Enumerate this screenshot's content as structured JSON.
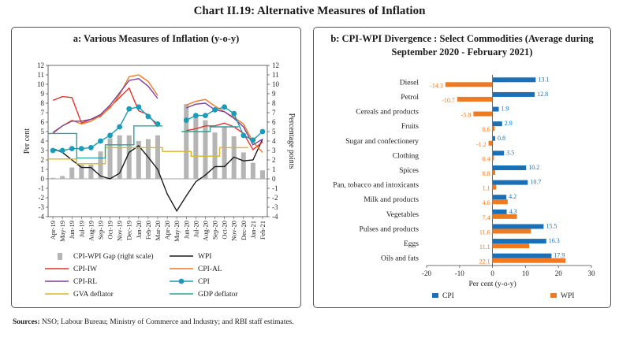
{
  "title": "Chart II.19: Alternative Measures of Inflation",
  "sources_label": "Sources:",
  "sources_text": "NSO; Labour Bureau; Ministry of Commerce and Industry; and RBI staff estimates.",
  "chart_data": [
    {
      "type": "line",
      "title": "a: Various Measures of Inflation (y-o-y)",
      "ylabel": "Per cent",
      "y2label": "Percentage points",
      "ylim": [
        -4,
        12
      ],
      "y2lim": [
        -4,
        12
      ],
      "yticks": [
        -4,
        -3,
        -2,
        -1,
        0,
        1,
        2,
        3,
        4,
        5,
        6,
        7,
        8,
        9,
        10,
        11,
        12
      ],
      "categories": [
        "Apr-19",
        "May-19",
        "Jun-19",
        "Jul-19",
        "Aug-19",
        "Sep-19",
        "Oct-19",
        "Nov-19",
        "Dec-19",
        "Jan-20",
        "Feb-20",
        "Mar-20",
        "Apr-20",
        "May-20",
        "Jun-20",
        "Jul-20",
        "Aug-20",
        "Sep-20",
        "Oct-20",
        "Nov-20",
        "Dec-20",
        "Jan-21",
        "Feb-21"
      ],
      "tick_labels": [
        "Apr-19",
        "Jun-19",
        "Aug-19",
        "Oct-19",
        "Dec-19",
        "Feb-20",
        "Apr-20",
        "Jun-20",
        "Aug-20",
        "Oct-20",
        "Dec-20",
        "Feb-21",
        "May-19",
        "Jul-19",
        "Sep-19",
        "Nov-19",
        "Jan-20",
        "Mar-20",
        "May-20",
        "Jul-20",
        "Sep-20",
        "Nov-20",
        "Jan-21"
      ],
      "series": [
        {
          "name": "CPI-WPI Gap (right scale)",
          "kind": "bar",
          "color": "#b5b5b5",
          "values": [
            0.1,
            0.3,
            1.2,
            1.5,
            1.5,
            2.9,
            4.3,
            4.6,
            4.6,
            4.0,
            4.2,
            4.6,
            null,
            null,
            7.9,
            6.9,
            6.2,
            4.9,
            5.5,
            4.5,
            2.8,
            1.7,
            0.9
          ]
        },
        {
          "name": "WPI",
          "kind": "line",
          "color": "#1a1a1a",
          "values": [
            3.2,
            2.8,
            2.0,
            1.2,
            1.2,
            0.3,
            0.0,
            0.6,
            2.8,
            3.5,
            2.3,
            1.0,
            -1.6,
            -3.4,
            -1.8,
            -0.3,
            0.4,
            1.3,
            1.3,
            2.3,
            1.9,
            2.0,
            4.2
          ]
        },
        {
          "name": "CPI-IW",
          "kind": "line",
          "color": "#e8312b",
          "values": [
            8.3,
            8.7,
            8.6,
            5.9,
            6.3,
            6.6,
            7.6,
            8.6,
            9.6,
            7.2,
            6.8,
            5.5,
            null,
            null,
            5.1,
            5.3,
            5.6,
            5.6,
            5.9,
            5.5,
            4.8,
            3.1,
            3.9
          ]
        },
        {
          "name": "CPI-AL",
          "kind": "line",
          "color": "#f07a22",
          "values": [
            4.8,
            5.6,
            6.2,
            5.8,
            6.1,
            6.7,
            7.5,
            8.9,
            10.8,
            11.0,
            10.3,
            8.8,
            null,
            null,
            7.8,
            8.2,
            8.4,
            7.7,
            7.1,
            6.5,
            5.8,
            3.9,
            2.8
          ]
        },
        {
          "name": "CPI-RL",
          "kind": "line",
          "color": "#7b3fa0",
          "values": [
            4.9,
            5.6,
            6.1,
            6.1,
            6.3,
            6.8,
            7.8,
            9.1,
            10.4,
            10.6,
            9.8,
            8.5,
            null,
            null,
            7.5,
            7.9,
            8.0,
            7.3,
            7.1,
            6.4,
            5.5,
            3.6,
            4.2
          ]
        },
        {
          "name": "CPI",
          "kind": "line",
          "color": "#1a9bb7",
          "marker": "o",
          "values": [
            3.0,
            3.0,
            3.2,
            3.2,
            3.3,
            4.0,
            4.6,
            5.5,
            7.4,
            7.6,
            6.6,
            5.8,
            null,
            null,
            6.2,
            6.7,
            6.7,
            7.3,
            7.6,
            6.9,
            4.6,
            4.1,
            5.0
          ]
        },
        {
          "name": "GVA deflator",
          "kind": "step",
          "color": "#d9b824",
          "values": [
            2.1,
            2.1,
            2.1,
            1.6,
            1.6,
            1.6,
            3.3,
            3.3,
            3.3,
            3.3,
            3.3,
            3.3,
            2.9,
            2.9,
            2.9,
            2.4,
            2.4,
            2.4,
            3.3,
            3.3,
            3.3,
            null,
            null
          ]
        },
        {
          "name": "GDP deflator",
          "kind": "step",
          "color": "#2aa39b",
          "values": [
            4.8,
            4.8,
            4.8,
            2.2,
            2.2,
            2.2,
            3.6,
            3.6,
            3.6,
            5.6,
            5.6,
            5.6,
            null,
            null,
            5.0,
            5.0,
            5.0,
            5.5,
            5.5,
            5.5,
            null,
            null,
            null
          ]
        }
      ],
      "legend": [
        "CPI-WPI Gap (right scale)",
        "WPI",
        "CPI-IW",
        "CPI-AL",
        "CPI-RL",
        "CPI",
        "GVA deflator",
        "GDP deflator"
      ]
    },
    {
      "type": "bar",
      "orientation": "horizontal",
      "title": "b: CPI-WPI Divergence : Select Commodities (Average during September 2020 - February 2021)",
      "xlabel": "Per cent (y-o-y)",
      "xlim": [
        -20,
        30
      ],
      "xticks": [
        -20,
        -10,
        0,
        10,
        20,
        30
      ],
      "categories": [
        "Diesel",
        "Petrol",
        "Cereals and products",
        "Fruits",
        "Sugar and confectionery",
        "Clothing",
        "Spices",
        "Pan, tobacco and intoxicants",
        "Milk and products",
        "Vegetables",
        "Pulses and products",
        "Eggs",
        "Oils and fats"
      ],
      "series": [
        {
          "name": "CPI",
          "color": "#1a6fb5",
          "values": [
            13.1,
            12.8,
            1.9,
            2.9,
            0.8,
            3.5,
            10.2,
            10.7,
            4.2,
            4.3,
            15.5,
            16.3,
            17.9
          ]
        },
        {
          "name": "WPI",
          "color": "#f07a22",
          "values": [
            -14.3,
            -10.7,
            -5.8,
            0.6,
            -1.2,
            0.4,
            0.8,
            1.1,
            4.6,
            7.4,
            11.6,
            11.1,
            22.1
          ]
        }
      ],
      "cpi_labels": [
        "13.1",
        "12.8",
        "1.9",
        "2.9",
        "0.8",
        "3.5",
        "10.2",
        "10.7",
        "4.2",
        "4.3",
        "15.5",
        "16.3",
        "17.9"
      ],
      "wpi_labels": [
        "-14.3",
        "-10.7",
        "-5.8",
        "0.6",
        "-1.2",
        "0.4",
        "0.8",
        "1.1",
        "4.6",
        "7.4",
        "11.6",
        "11.1",
        "22.1"
      ]
    }
  ]
}
